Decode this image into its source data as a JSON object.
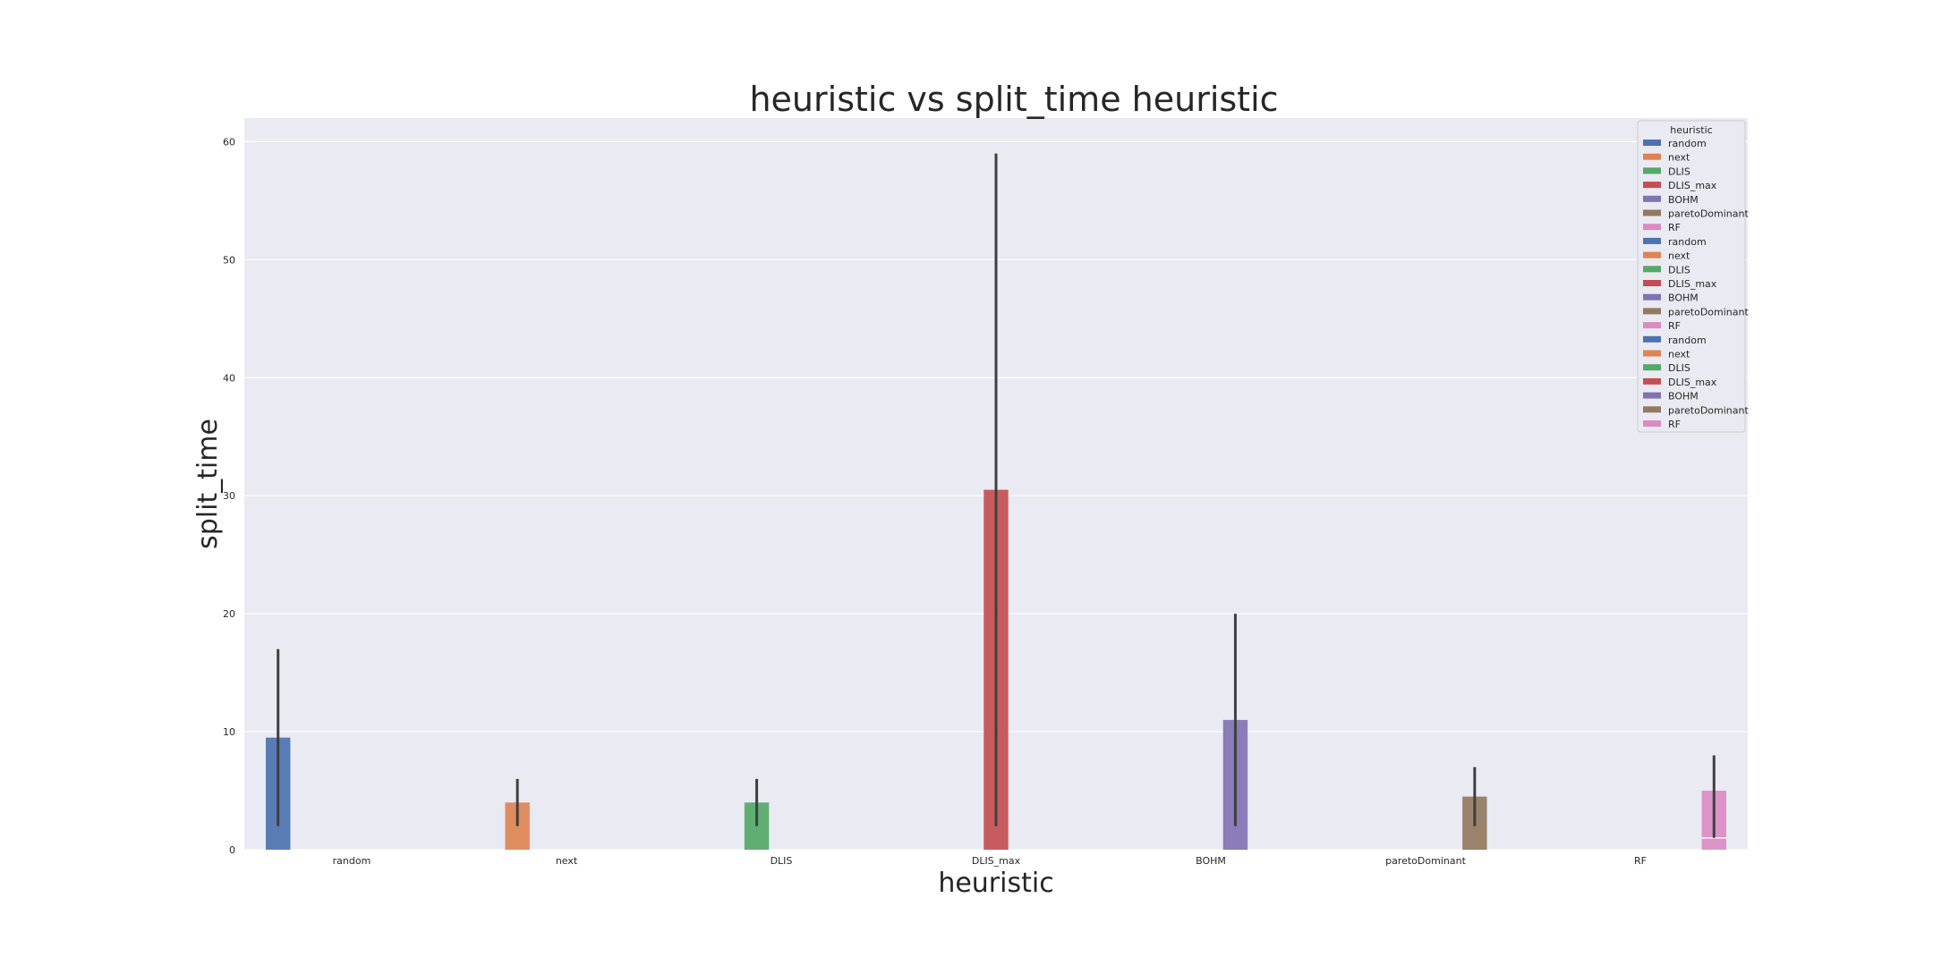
{
  "chart_data": {
    "type": "bar",
    "title": "heuristic vs split_time heuristic",
    "xlabel": "heuristic",
    "ylabel": "split_time",
    "categories": [
      "random",
      "next",
      "DLIS",
      "DLIS_max",
      "BOHM",
      "paretoDominant",
      "RF"
    ],
    "y_ticks": [
      "0",
      "10",
      "20",
      "30",
      "40",
      "50",
      "60"
    ],
    "ylim": [
      0,
      62
    ],
    "grid": true,
    "legend": {
      "title": "heuristic",
      "placement": "top-right",
      "entries": [
        "random",
        "next",
        "DLIS",
        "DLIS_max",
        "BOHM",
        "paretoDominant",
        "RF",
        "random",
        "next",
        "DLIS",
        "DLIS_max",
        "BOHM",
        "paretoDominant",
        "RF",
        "random",
        "next",
        "DLIS",
        "DLIS_max",
        "BOHM",
        "paretoDominant",
        "RF"
      ]
    },
    "colors": {
      "random": "#4c72b0",
      "next": "#dd8452",
      "DLIS": "#55a868",
      "DLIS_max": "#c44e52",
      "BOHM": "#8172b3",
      "paretoDominant": "#937860",
      "RF": "#da8bc3"
    },
    "series": [
      {
        "name": "random",
        "category": "random",
        "value": 9.5,
        "ci": [
          2,
          17
        ]
      },
      {
        "name": "next",
        "category": "next",
        "value": 4.0,
        "ci": [
          2,
          6
        ]
      },
      {
        "name": "DLIS",
        "category": "DLIS",
        "value": 4.0,
        "ci": [
          2,
          6
        ]
      },
      {
        "name": "DLIS_max",
        "category": "DLIS_max",
        "value": 30.5,
        "ci": [
          2,
          59
        ]
      },
      {
        "name": "BOHM",
        "category": "BOHM",
        "value": 11.0,
        "ci": [
          2,
          20
        ]
      },
      {
        "name": "paretoDominant",
        "category": "paretoDominant",
        "value": 4.5,
        "ci": [
          2,
          7
        ]
      },
      {
        "name": "RF",
        "category": "RF",
        "value": 5.0,
        "ci": [
          1,
          8
        ],
        "secondary_value": 1.0
      }
    ]
  }
}
